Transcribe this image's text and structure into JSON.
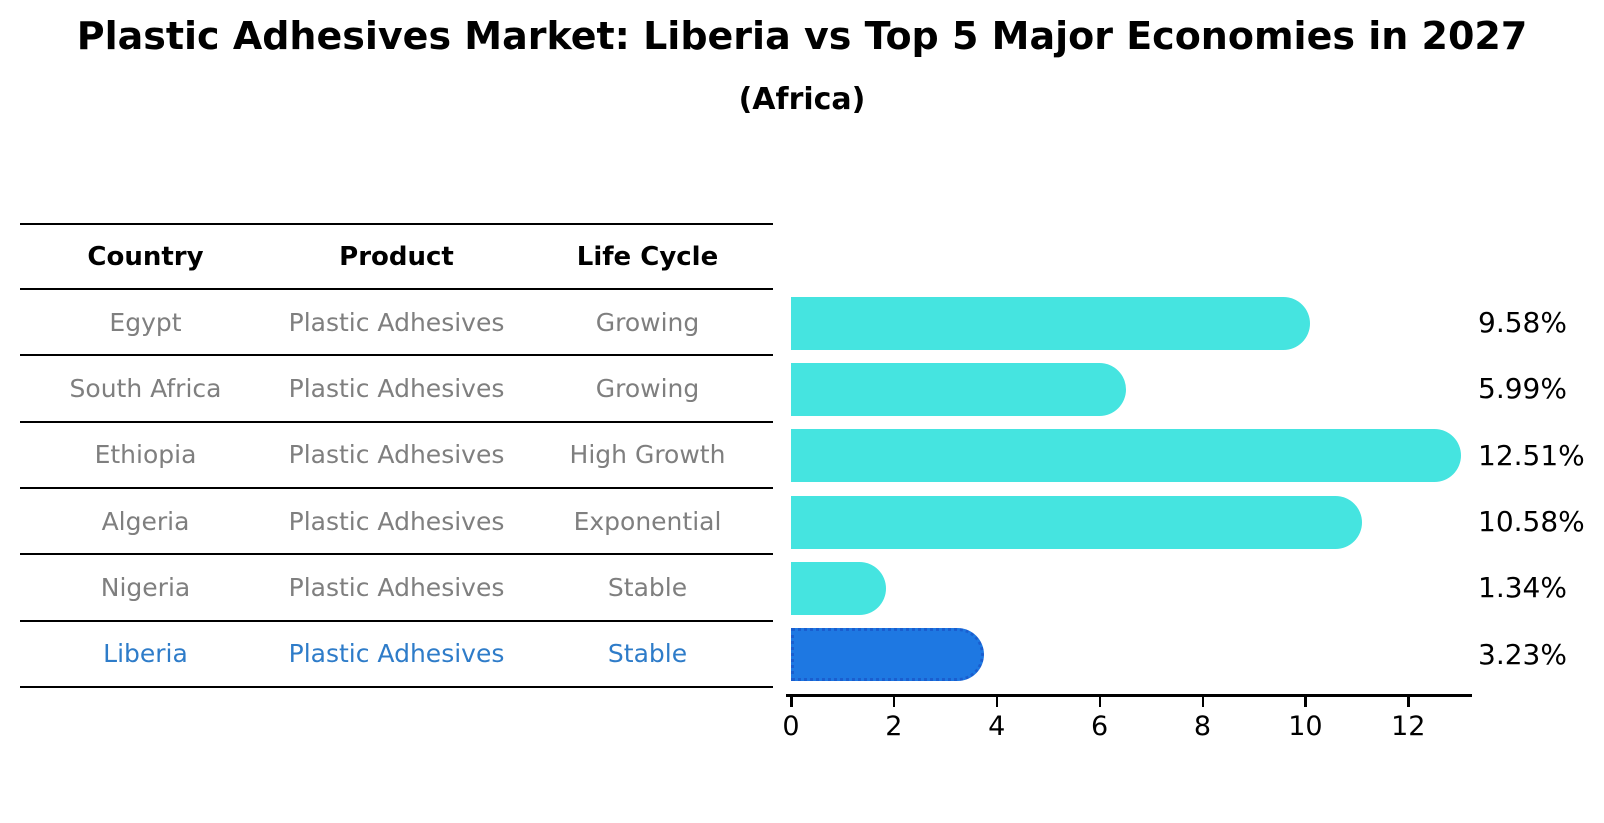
{
  "title": "Plastic Adhesives Market: Liberia vs Top 5 Major Economies in 2027",
  "subtitle": "(Africa)",
  "table": {
    "headers": [
      "Country",
      "Product",
      "Life Cycle"
    ],
    "rows": [
      {
        "country": "Egypt",
        "product": "Plastic Adhesives",
        "life_cycle": "Growing",
        "highlight": false
      },
      {
        "country": "South Africa",
        "product": "Plastic Adhesives",
        "life_cycle": "Growing",
        "highlight": false
      },
      {
        "country": "Ethiopia",
        "product": "Plastic Adhesives",
        "life_cycle": "High Growth",
        "highlight": false
      },
      {
        "country": "Algeria",
        "product": "Plastic Adhesives",
        "life_cycle": "Exponential",
        "highlight": false
      },
      {
        "country": "Nigeria",
        "product": "Plastic Adhesives",
        "life_cycle": "Stable",
        "highlight": false
      },
      {
        "country": "Liberia",
        "product": "Plastic Adhesives",
        "life_cycle": "Stable",
        "highlight": true
      }
    ]
  },
  "chart_data": {
    "type": "bar",
    "orientation": "horizontal",
    "title": "Plastic Adhesives Market: Liberia vs Top 5 Major Economies in 2027 (Africa)",
    "categories": [
      "Egypt",
      "South Africa",
      "Ethiopia",
      "Algeria",
      "Nigeria",
      "Liberia"
    ],
    "values": [
      9.58,
      5.99,
      12.51,
      10.58,
      1.34,
      3.23
    ],
    "value_labels": [
      "9.58%",
      "5.99%",
      "12.51%",
      "10.58%",
      "1.34%",
      "3.23%"
    ],
    "unit": "%",
    "x_ticks": [
      0,
      2,
      4,
      6,
      8,
      10,
      12
    ],
    "xlim": [
      0,
      13.2
    ],
    "grid": false,
    "legend": false,
    "highlight_index": 5
  },
  "colors": {
    "bar": "#45E4E0",
    "highlight_bar": "#1E78E2",
    "highlight_border": "#1A5ECF",
    "highlight_text": "#2E7CC9",
    "cell_text": "#7F7F7F",
    "header_text": "#000000",
    "axis": "#000000"
  }
}
